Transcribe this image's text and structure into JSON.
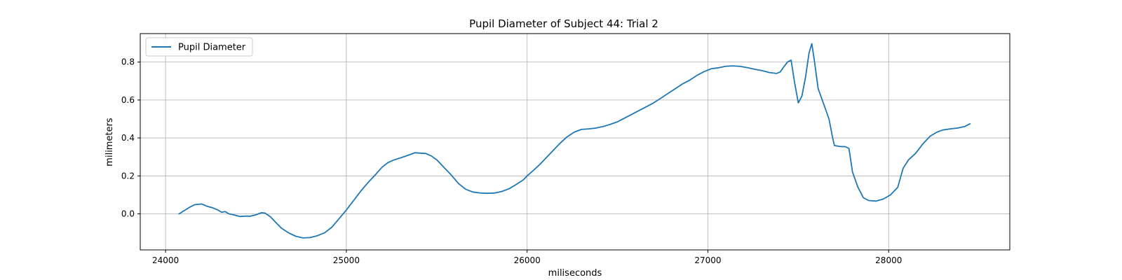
{
  "chart_data": {
    "type": "line",
    "title": "Pupil Diameter of Subject 44: Trial 2",
    "xlabel": "miliseconds",
    "ylabel": "milimeters",
    "xlim": [
      23860,
      28670
    ],
    "ylim": [
      -0.19,
      0.95
    ],
    "xticks": [
      24000,
      25000,
      26000,
      27000,
      28000
    ],
    "yticks": [
      0.0,
      0.2,
      0.4,
      0.6,
      0.8
    ],
    "ytick_labels": [
      "0.0",
      "0.2",
      "0.4",
      "0.6",
      "0.8"
    ],
    "grid": true,
    "legend_position": "top-left",
    "series": [
      {
        "name": "Pupil Diameter",
        "color": "#1f77b4",
        "points": [
          [
            24075,
            0.0
          ],
          [
            24100,
            0.015
          ],
          [
            24130,
            0.033
          ],
          [
            24160,
            0.048
          ],
          [
            24200,
            0.052
          ],
          [
            24230,
            0.04
          ],
          [
            24260,
            0.032
          ],
          [
            24290,
            0.02
          ],
          [
            24310,
            0.008
          ],
          [
            24330,
            0.012
          ],
          [
            24350,
            0.0
          ],
          [
            24380,
            -0.006
          ],
          [
            24410,
            -0.014
          ],
          [
            24440,
            -0.012
          ],
          [
            24470,
            -0.012
          ],
          [
            24500,
            -0.005
          ],
          [
            24530,
            0.006
          ],
          [
            24550,
            0.004
          ],
          [
            24580,
            -0.015
          ],
          [
            24610,
            -0.045
          ],
          [
            24640,
            -0.075
          ],
          [
            24680,
            -0.1
          ],
          [
            24720,
            -0.118
          ],
          [
            24760,
            -0.127
          ],
          [
            24800,
            -0.125
          ],
          [
            24840,
            -0.115
          ],
          [
            24880,
            -0.1
          ],
          [
            24920,
            -0.07
          ],
          [
            24960,
            -0.025
          ],
          [
            25000,
            0.02
          ],
          [
            25040,
            0.07
          ],
          [
            25080,
            0.12
          ],
          [
            25120,
            0.165
          ],
          [
            25160,
            0.205
          ],
          [
            25200,
            0.248
          ],
          [
            25230,
            0.27
          ],
          [
            25260,
            0.283
          ],
          [
            25300,
            0.295
          ],
          [
            25340,
            0.308
          ],
          [
            25380,
            0.322
          ],
          [
            25410,
            0.32
          ],
          [
            25440,
            0.318
          ],
          [
            25470,
            0.305
          ],
          [
            25500,
            0.285
          ],
          [
            25540,
            0.245
          ],
          [
            25580,
            0.205
          ],
          [
            25620,
            0.16
          ],
          [
            25660,
            0.13
          ],
          [
            25700,
            0.115
          ],
          [
            25740,
            0.11
          ],
          [
            25780,
            0.108
          ],
          [
            25820,
            0.11
          ],
          [
            25860,
            0.118
          ],
          [
            25900,
            0.132
          ],
          [
            25940,
            0.155
          ],
          [
            25980,
            0.18
          ],
          [
            26000,
            0.2
          ],
          [
            26030,
            0.225
          ],
          [
            26070,
            0.26
          ],
          [
            26110,
            0.3
          ],
          [
            26150,
            0.34
          ],
          [
            26180,
            0.37
          ],
          [
            26220,
            0.405
          ],
          [
            26260,
            0.43
          ],
          [
            26300,
            0.445
          ],
          [
            26340,
            0.448
          ],
          [
            26380,
            0.452
          ],
          [
            26420,
            0.46
          ],
          [
            26460,
            0.472
          ],
          [
            26500,
            0.485
          ],
          [
            26540,
            0.505
          ],
          [
            26580,
            0.525
          ],
          [
            26620,
            0.545
          ],
          [
            26660,
            0.565
          ],
          [
            26700,
            0.585
          ],
          [
            26740,
            0.61
          ],
          [
            26780,
            0.635
          ],
          [
            26820,
            0.66
          ],
          [
            26860,
            0.685
          ],
          [
            26900,
            0.705
          ],
          [
            26940,
            0.73
          ],
          [
            26980,
            0.75
          ],
          [
            27020,
            0.765
          ],
          [
            27060,
            0.77
          ],
          [
            27100,
            0.778
          ],
          [
            27140,
            0.78
          ],
          [
            27180,
            0.777
          ],
          [
            27220,
            0.77
          ],
          [
            27260,
            0.762
          ],
          [
            27300,
            0.755
          ],
          [
            27340,
            0.745
          ],
          [
            27380,
            0.74
          ],
          [
            27400,
            0.748
          ],
          [
            27420,
            0.775
          ],
          [
            27440,
            0.8
          ],
          [
            27460,
            0.81
          ],
          [
            27480,
            0.69
          ],
          [
            27500,
            0.585
          ],
          [
            27520,
            0.62
          ],
          [
            27540,
            0.72
          ],
          [
            27560,
            0.85
          ],
          [
            27575,
            0.897
          ],
          [
            27590,
            0.8
          ],
          [
            27610,
            0.66
          ],
          [
            27640,
            0.58
          ],
          [
            27670,
            0.5
          ],
          [
            27690,
            0.4
          ],
          [
            27700,
            0.36
          ],
          [
            27730,
            0.355
          ],
          [
            27760,
            0.354
          ],
          [
            27780,
            0.345
          ],
          [
            27800,
            0.22
          ],
          [
            27830,
            0.14
          ],
          [
            27860,
            0.085
          ],
          [
            27890,
            0.07
          ],
          [
            27930,
            0.067
          ],
          [
            27970,
            0.078
          ],
          [
            28010,
            0.1
          ],
          [
            28050,
            0.14
          ],
          [
            28080,
            0.24
          ],
          [
            28110,
            0.285
          ],
          [
            28150,
            0.32
          ],
          [
            28190,
            0.37
          ],
          [
            28230,
            0.41
          ],
          [
            28270,
            0.432
          ],
          [
            28300,
            0.442
          ],
          [
            28340,
            0.448
          ],
          [
            28380,
            0.452
          ],
          [
            28420,
            0.46
          ],
          [
            28450,
            0.475
          ]
        ]
      }
    ]
  }
}
